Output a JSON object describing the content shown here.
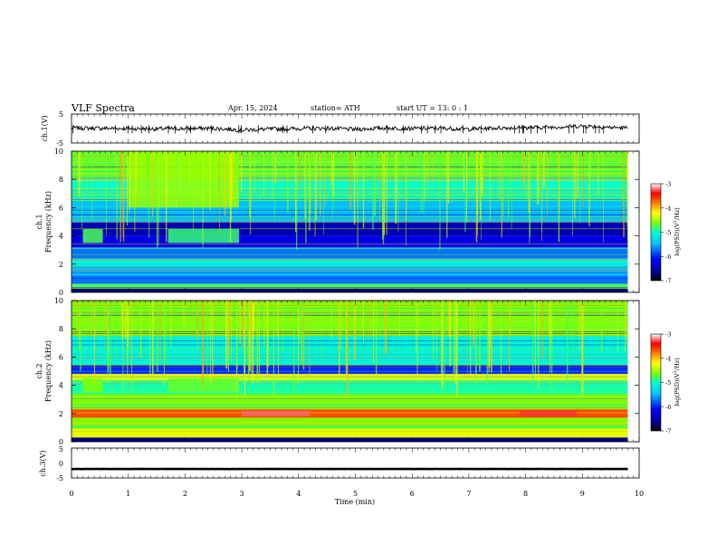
{
  "header": {
    "title": "VLF  Spectra",
    "date": "Apr. 15, 2024",
    "station": "station= ATH",
    "start": "start  UT  =    13: 0   : 1"
  },
  "chart_data": [
    {
      "type": "line",
      "name": "ch1-waveform",
      "ylabel": "ch.1(V)",
      "ylim": [
        -5,
        5
      ],
      "yticks": [
        "5",
        "-5"
      ],
      "x": [
        0,
        0.5,
        1,
        1.5,
        2,
        2.5,
        3,
        3.5,
        4,
        4.5,
        5,
        5.5,
        6,
        6.5,
        7,
        7.5,
        8,
        8.5,
        9,
        9.5,
        9.8
      ],
      "values": [
        0.2,
        0.1,
        0.0,
        -0.1,
        0.0,
        0.1,
        -0.5,
        -0.2,
        0.0,
        0.1,
        -0.3,
        0.2,
        0.0,
        0.1,
        -0.2,
        0.2,
        0.3,
        0.5,
        0.9,
        0.4,
        0.2
      ]
    },
    {
      "type": "heatmap",
      "name": "ch1-spectrogram",
      "ylabel": "ch.1\nFrequency (kHz)",
      "ylim": [
        0,
        10
      ],
      "yticks": [
        "0",
        "2",
        "4",
        "6",
        "8",
        "10"
      ],
      "colorbar": {
        "label": "log(PSD)(V²/Hz)",
        "range": [
          -7,
          -3
        ],
        "ticks": [
          "-3",
          "-4",
          "-5",
          "-6",
          "-7"
        ]
      },
      "bands_khz": [
        {
          "from": 0.0,
          "to": 0.3,
          "level": -7.0
        },
        {
          "from": 0.3,
          "to": 0.6,
          "level": -5.2
        },
        {
          "from": 0.6,
          "to": 1.2,
          "level": -6.2
        },
        {
          "from": 1.2,
          "to": 1.8,
          "level": -6.0
        },
        {
          "from": 1.8,
          "to": 2.4,
          "level": -5.6
        },
        {
          "from": 2.4,
          "to": 3.2,
          "level": -6.2
        },
        {
          "from": 3.2,
          "to": 4.0,
          "level": -6.6
        },
        {
          "from": 4.0,
          "to": 5.0,
          "level": -6.8
        },
        {
          "from": 5.0,
          "to": 6.5,
          "level": -6.0
        },
        {
          "from": 6.5,
          "to": 8.0,
          "level": -5.5
        },
        {
          "from": 8.0,
          "to": 10.0,
          "level": -5.1
        }
      ],
      "events": [
        {
          "t_from": 0.2,
          "t_to": 0.55,
          "f_from": 3.5,
          "f_to": 4.5,
          "level": -5.2
        },
        {
          "t_from": 1.7,
          "t_to": 2.95,
          "f_from": 3.5,
          "f_to": 4.5,
          "level": -5.3
        },
        {
          "t_from": 1.0,
          "t_to": 2.95,
          "f_from": 6.0,
          "f_to": 10.0,
          "level": -4.9
        }
      ]
    },
    {
      "type": "heatmap",
      "name": "ch2-spectrogram",
      "ylabel": "ch.2\nFrequency (kHz)",
      "ylim": [
        0,
        10
      ],
      "yticks": [
        "0",
        "2",
        "4",
        "6",
        "8",
        "10"
      ],
      "colorbar": {
        "label": "log(PSD)(V²/Hz)",
        "range": [
          -7,
          -3
        ],
        "ticks": [
          "-3",
          "-4",
          "-5",
          "-6",
          "-7"
        ]
      },
      "bands_khz": [
        {
          "from": 0.0,
          "to": 0.3,
          "level": -7.0
        },
        {
          "from": 0.3,
          "to": 0.9,
          "level": -4.6
        },
        {
          "from": 0.9,
          "to": 1.7,
          "level": -5.0
        },
        {
          "from": 1.7,
          "to": 2.3,
          "level": -3.8
        },
        {
          "from": 2.3,
          "to": 3.4,
          "level": -5.0
        },
        {
          "from": 3.4,
          "to": 4.4,
          "level": -5.4
        },
        {
          "from": 4.4,
          "to": 4.8,
          "level": -4.6
        },
        {
          "from": 4.8,
          "to": 5.4,
          "level": -6.4
        },
        {
          "from": 5.4,
          "to": 7.5,
          "level": -5.6
        },
        {
          "from": 7.5,
          "to": 10.0,
          "level": -5.0
        }
      ],
      "events": [
        {
          "t_from": 0.2,
          "t_to": 0.55,
          "f_from": 3.5,
          "f_to": 4.5,
          "level": -5.0
        },
        {
          "t_from": 1.7,
          "t_to": 2.95,
          "f_from": 3.5,
          "f_to": 4.5,
          "level": -5.1
        },
        {
          "t_from": 3.0,
          "t_to": 4.2,
          "f_from": 1.8,
          "f_to": 2.2,
          "level": -3.3
        },
        {
          "t_from": 7.9,
          "t_to": 8.9,
          "f_from": 1.8,
          "f_to": 2.2,
          "level": -3.4
        }
      ]
    },
    {
      "type": "line",
      "name": "ch3-waveform",
      "ylabel": "ch.3(V)",
      "ylim": [
        -5,
        5
      ],
      "yticks": [
        "5",
        "0",
        "-5"
      ],
      "x": [
        0,
        9.8
      ],
      "values": [
        -2.0,
        -2.0
      ]
    }
  ],
  "time_axis": {
    "label": "Time  (min)",
    "range": [
      0,
      10
    ],
    "ticks": [
      "0",
      "1",
      "2",
      "3",
      "4",
      "5",
      "6",
      "7",
      "8",
      "9",
      "10"
    ]
  },
  "colors": {
    "colormap": [
      "#000080",
      "#0000ff",
      "#00bfff",
      "#00ffcc",
      "#80ff00",
      "#ffff00",
      "#ff8000",
      "#ff0000",
      "#ffffff"
    ]
  }
}
